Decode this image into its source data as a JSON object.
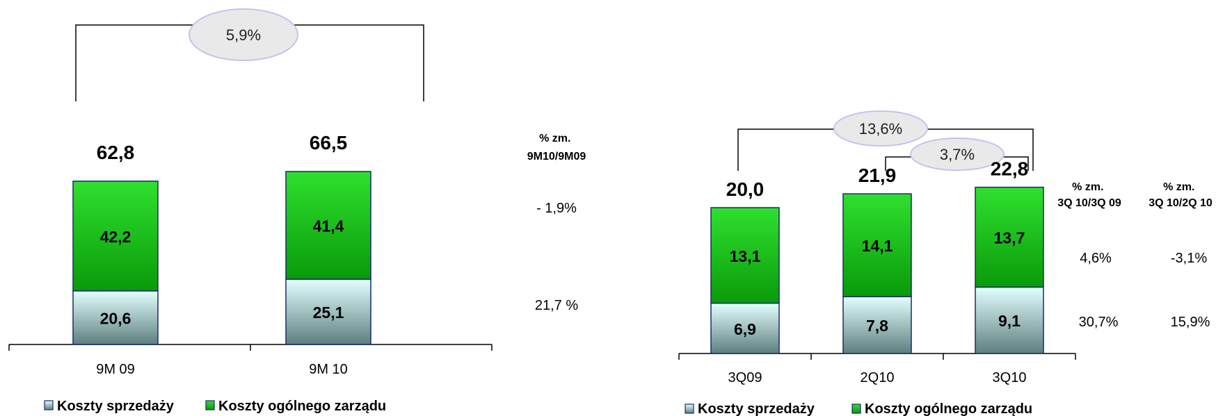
{
  "colors": {
    "sales_top": "#e3ffff",
    "sales_bottom": "#5e7f7f",
    "admin_top": "#2fe02f",
    "admin_bottom": "#0a9a0a",
    "bar_border": "#1a2a6a",
    "oval_fill": "#e9e9e9",
    "oval_border": "#c4c4ee"
  },
  "legend": {
    "sales": "Koszty sprzedaży",
    "admin": "Koszty ogólnego zarządu"
  },
  "left": {
    "change_bubble": "5,9%",
    "change_header": [
      "% zm.",
      "9M10/9M09"
    ],
    "change_admin": "- 1,9%",
    "change_sales": "21,7 %"
  },
  "right": {
    "bubble_yoy": "13,6%",
    "bubble_qoq": "3,7%",
    "header_yoy": [
      "% zm.",
      "3Q 10/3Q 09"
    ],
    "header_qoq": [
      "% zm.",
      "3Q 10/2Q 10"
    ],
    "admin_yoy": "4,6%",
    "admin_qoq": "-3,1%",
    "sales_yoy": "30,7%",
    "sales_qoq": "15,9%"
  },
  "chart_data": [
    {
      "type": "bar",
      "stacked": true,
      "categories": [
        "9M 09",
        "9M 10"
      ],
      "series": [
        {
          "name": "Koszty sprzedaży",
          "values": [
            20.6,
            25.1
          ],
          "labels": [
            "20,6",
            "25,1"
          ]
        },
        {
          "name": "Koszty ogólnego zarządu",
          "values": [
            42.2,
            41.4
          ],
          "labels": [
            "42,2",
            "41,4"
          ]
        }
      ],
      "totals": [
        62.8,
        66.5
      ],
      "total_labels": [
        "62,8",
        "66,5"
      ],
      "legend_position": "bottom"
    },
    {
      "type": "bar",
      "stacked": true,
      "categories": [
        "3Q09",
        "2Q10",
        "3Q10"
      ],
      "series": [
        {
          "name": "Koszty sprzedaży",
          "values": [
            6.9,
            7.8,
            9.1
          ],
          "labels": [
            "6,9",
            "7,8",
            "9,1"
          ]
        },
        {
          "name": "Koszty ogólnego zarządu",
          "values": [
            13.1,
            14.1,
            13.7
          ],
          "labels": [
            "13,1",
            "14,1",
            "13,7"
          ]
        }
      ],
      "totals": [
        20.0,
        21.9,
        22.8
      ],
      "total_labels": [
        "20,0",
        "21,9",
        "22,8"
      ],
      "legend_position": "bottom"
    }
  ]
}
